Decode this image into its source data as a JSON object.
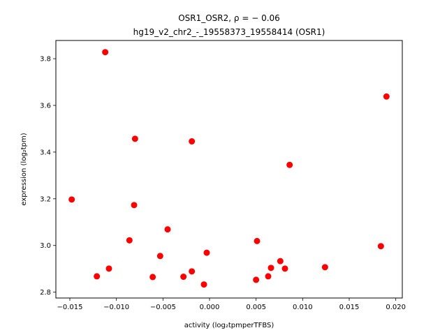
{
  "chart_data": {
    "type": "scatter",
    "title_line1": "OSR1_OSR2, ρ = − 0.06",
    "title_line2": "hg19_v2_chr2_-_19558373_19558414 (OSR1)",
    "xlabel": "activity (log₂tpmperTFBS)",
    "ylabel": "expression (log₂tpm)",
    "xlim": [
      -0.0165,
      0.0207
    ],
    "ylim": [
      2.775,
      3.878
    ],
    "xticks": [
      -0.015,
      -0.01,
      -0.005,
      0.0,
      0.005,
      0.01,
      0.015,
      0.02
    ],
    "xtick_labels": [
      "−0.015",
      "−0.010",
      "−0.005",
      "0.000",
      "0.005",
      "0.010",
      "0.015",
      "0.020"
    ],
    "yticks": [
      2.8,
      3.0,
      3.2,
      3.4,
      3.6,
      3.8
    ],
    "ytick_labels": [
      "2.8",
      "3.0",
      "3.2",
      "3.4",
      "3.6",
      "3.8"
    ],
    "marker_color": "#ff0000",
    "points": [
      {
        "x": -0.0112,
        "y": 3.828
      },
      {
        "x": 0.019,
        "y": 3.638
      },
      {
        "x": -0.008,
        "y": 3.457
      },
      {
        "x": -0.0019,
        "y": 3.446
      },
      {
        "x": 0.0086,
        "y": 3.345
      },
      {
        "x": -0.0148,
        "y": 3.197
      },
      {
        "x": -0.0081,
        "y": 3.173
      },
      {
        "x": -0.0045,
        "y": 3.069
      },
      {
        "x": -0.0086,
        "y": 3.022
      },
      {
        "x": 0.0051,
        "y": 3.019
      },
      {
        "x": 0.0184,
        "y": 2.997
      },
      {
        "x": -0.0003,
        "y": 2.969
      },
      {
        "x": -0.0053,
        "y": 2.955
      },
      {
        "x": 0.0076,
        "y": 2.933
      },
      {
        "x": -0.0108,
        "y": 2.901
      },
      {
        "x": 0.0066,
        "y": 2.904
      },
      {
        "x": 0.0081,
        "y": 2.901
      },
      {
        "x": 0.0124,
        "y": 2.907
      },
      {
        "x": -0.0019,
        "y": 2.889
      },
      {
        "x": -0.0121,
        "y": 2.868
      },
      {
        "x": -0.0061,
        "y": 2.865
      },
      {
        "x": -0.0028,
        "y": 2.866
      },
      {
        "x": 0.0063,
        "y": 2.868
      },
      {
        "x": 0.005,
        "y": 2.853
      },
      {
        "x": -0.0006,
        "y": 2.833
      }
    ]
  }
}
